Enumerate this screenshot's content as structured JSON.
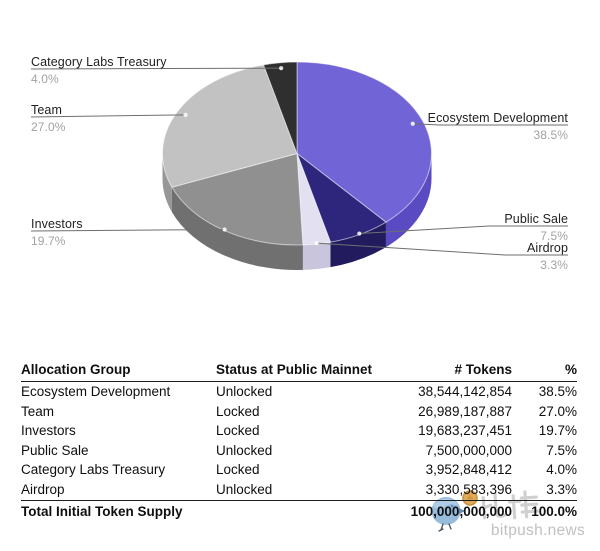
{
  "chart_data": {
    "type": "pie",
    "style": "3d",
    "title": "",
    "legend": "none",
    "slices": [
      {
        "label": "Ecosystem Development",
        "pct": 38.5,
        "pct_label": "38.5%",
        "color": "#7164D6",
        "side_color": "#5A4BC2"
      },
      {
        "label": "Public Sale",
        "pct": 7.5,
        "pct_label": "7.5%",
        "color": "#2E267D",
        "side_color": "#221C5E"
      },
      {
        "label": "Airdrop",
        "pct": 3.3,
        "pct_label": "3.3%",
        "color": "#E2E0F1",
        "side_color": "#C8C5DC"
      },
      {
        "label": "Investors",
        "pct": 19.7,
        "pct_label": "19.7%",
        "color": "#909090",
        "side_color": "#707070"
      },
      {
        "label": "Team",
        "pct": 27.0,
        "pct_label": "27.0%",
        "color": "#C2C2C2",
        "side_color": "#979797"
      },
      {
        "label": "Category Labs Treasury",
        "pct": 4.0,
        "pct_label": "4.0%",
        "color": "#2F2F2F",
        "side_color": "#1E1E1E"
      }
    ]
  },
  "table": {
    "headers": [
      "Allocation Group",
      "Status at Public Mainnet",
      "# Tokens",
      "%"
    ],
    "rows": [
      {
        "group": "Ecosystem Development",
        "status": "Unlocked",
        "tokens": "38,544,142,854",
        "pct": "38.5%"
      },
      {
        "group": "Team",
        "status": "Locked",
        "tokens": "26,989,187,887",
        "pct": "27.0%"
      },
      {
        "group": "Investors",
        "status": "Locked",
        "tokens": "19,683,237,451",
        "pct": "19.7%"
      },
      {
        "group": "Public Sale",
        "status": "Unlocked",
        "tokens": "7,500,000,000",
        "pct": "7.5%"
      },
      {
        "group": "Category Labs Treasury",
        "status": "Locked",
        "tokens": "3,952,848,412",
        "pct": "4.0%"
      },
      {
        "group": "Airdrop",
        "status": "Unlocked",
        "tokens": "3,330,583,396",
        "pct": "3.3%"
      }
    ],
    "total": {
      "label": "Total Initial Token Supply",
      "status": "",
      "tokens": "100,000,000,000",
      "pct": "100.0%"
    }
  },
  "watermark": {
    "site": "bitpush.news",
    "cjk": "比推",
    "bird_color": "#8BB3D6",
    "wing_color": "#ACCBE5",
    "coin_color": "#DFA64F"
  }
}
